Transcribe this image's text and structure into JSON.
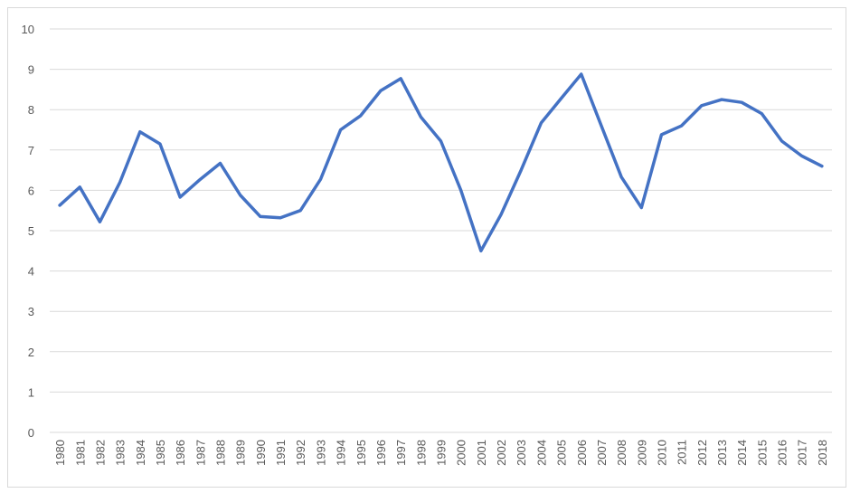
{
  "chart_data": {
    "type": "line",
    "categories": [
      "1980",
      "1981",
      "1982",
      "1983",
      "1984",
      "1985",
      "1986",
      "1987",
      "1988",
      "1989",
      "1990",
      "1991",
      "1992",
      "1993",
      "1994",
      "1995",
      "1996",
      "1997",
      "1998",
      "1999",
      "2000",
      "2001",
      "2002",
      "2003",
      "2004",
      "2005",
      "2006",
      "2007",
      "2008",
      "2009",
      "2010",
      "2011",
      "2012",
      "2013",
      "2014",
      "2015",
      "2016",
      "2017",
      "2018"
    ],
    "series": [
      {
        "color": "#4472c4",
        "values": [
          5.63,
          6.08,
          5.22,
          6.2,
          7.45,
          7.15,
          5.83,
          6.27,
          6.67,
          5.88,
          5.35,
          5.32,
          5.5,
          6.27,
          7.5,
          7.85,
          8.47,
          8.77,
          7.82,
          7.22,
          6.0,
          4.5,
          5.4,
          6.5,
          7.67,
          8.28,
          8.88,
          7.6,
          6.33,
          5.57,
          7.38,
          7.6,
          8.1,
          8.25,
          8.18,
          7.9,
          7.22,
          6.85,
          6.6
        ]
      }
    ],
    "ylim": [
      0,
      10
    ],
    "yticks": [
      0,
      1,
      2,
      3,
      4,
      5,
      6,
      7,
      8,
      9,
      10
    ],
    "grid": true
  }
}
